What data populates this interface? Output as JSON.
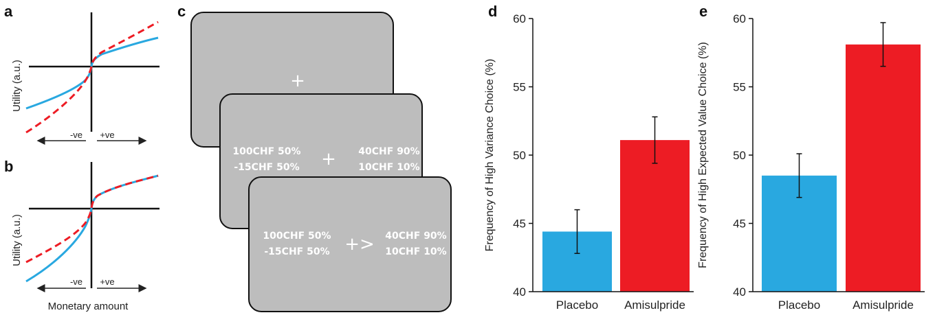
{
  "panel_labels": {
    "a": "a",
    "b": "b",
    "c": "c",
    "d": "d",
    "e": "e"
  },
  "colors": {
    "placebo": "#29a8e0",
    "amisulpride": "#ed1c24",
    "screen": "#bdbdbd"
  },
  "utility": {
    "ylabel": "Utility (a.u.)",
    "neg_label": "-ve",
    "pos_label": "+ve",
    "xlabel": "Monetary amount"
  },
  "screens": {
    "fixation": "+",
    "left_top": "100CHF 50%",
    "left_bottom": "-15CHF 50%",
    "right_top": "40CHF 90%",
    "right_bottom": "10CHF 10%",
    "choice_marker": "+>"
  },
  "chart_data": [
    {
      "type": "bar",
      "panel": "d",
      "categories": [
        "Placebo",
        "Amisulpride"
      ],
      "values": [
        44.4,
        51.1
      ],
      "errors": [
        1.6,
        1.7
      ],
      "ylabel": "Frequency of High Variance Choice (%)",
      "ylim": [
        40,
        60
      ],
      "yticks": [
        40,
        45,
        50,
        55,
        60
      ],
      "colors": [
        "#29a8e0",
        "#ed1c24"
      ]
    },
    {
      "type": "bar",
      "panel": "e",
      "categories": [
        "Placebo",
        "Amisulpride"
      ],
      "values": [
        48.5,
        58.1
      ],
      "errors": [
        1.6,
        1.6
      ],
      "ylabel": "Frequency of High Expected Value Choice (%)",
      "ylim": [
        40,
        60
      ],
      "yticks": [
        40,
        45,
        50,
        55,
        60
      ],
      "colors": [
        "#29a8e0",
        "#ed1c24"
      ]
    }
  ]
}
